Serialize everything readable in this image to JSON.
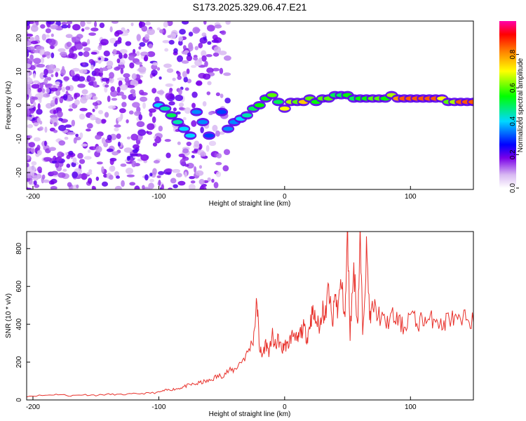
{
  "chart_data": [
    {
      "type": "heatmap",
      "title": "S173.2025.329.06.47.E21",
      "xlabel": "Height of straight line (km)",
      "ylabel": "Frequency (Hz)",
      "xlim": [
        -205,
        150
      ],
      "ylim": [
        -25,
        25
      ],
      "xticks": [
        -200,
        -100,
        0,
        100
      ],
      "yticks": [
        -20,
        -10,
        0,
        10,
        20
      ],
      "colorbar": {
        "label": "Normalized spectral amplitude",
        "ticks": [
          0.0,
          0.2,
          0.4,
          0.6,
          0.8
        ],
        "tick_labels": [
          "0.0",
          "0.2",
          "0.4",
          "0.6",
          "0.8"
        ],
        "range": [
          0,
          1
        ]
      },
      "ridge": [
        {
          "x": -100,
          "y": 0,
          "a": 0.4
        },
        {
          "x": -95,
          "y": -1,
          "a": 0.45
        },
        {
          "x": -90,
          "y": -3,
          "a": 0.5
        },
        {
          "x": -85,
          "y": -5,
          "a": 0.45
        },
        {
          "x": -80,
          "y": -7,
          "a": 0.4
        },
        {
          "x": -75,
          "y": -9,
          "a": 0.4
        },
        {
          "x": -70,
          "y": -2,
          "a": 0.35
        },
        {
          "x": -65,
          "y": -5,
          "a": 0.35
        },
        {
          "x": -60,
          "y": -9,
          "a": 0.3
        },
        {
          "x": -50,
          "y": -2,
          "a": 0.3
        },
        {
          "x": -45,
          "y": -7,
          "a": 0.35
        },
        {
          "x": -40,
          "y": -5,
          "a": 0.35
        },
        {
          "x": -35,
          "y": -4,
          "a": 0.4
        },
        {
          "x": -30,
          "y": -3,
          "a": 0.45
        },
        {
          "x": -25,
          "y": -1,
          "a": 0.5
        },
        {
          "x": -20,
          "y": 0,
          "a": 0.55
        },
        {
          "x": -15,
          "y": 2,
          "a": 0.55
        },
        {
          "x": -10,
          "y": 3,
          "a": 0.6
        },
        {
          "x": -5,
          "y": 1,
          "a": 0.5
        },
        {
          "x": 0,
          "y": -1,
          "a": 0.7
        },
        {
          "x": 5,
          "y": 1,
          "a": 0.65
        },
        {
          "x": 10,
          "y": 1,
          "a": 0.6
        },
        {
          "x": 15,
          "y": 1,
          "a": 0.75
        },
        {
          "x": 20,
          "y": 2,
          "a": 0.6
        },
        {
          "x": 25,
          "y": 1,
          "a": 0.55
        },
        {
          "x": 30,
          "y": 2,
          "a": 0.6
        },
        {
          "x": 35,
          "y": 2,
          "a": 0.6
        },
        {
          "x": 40,
          "y": 3,
          "a": 0.5
        },
        {
          "x": 45,
          "y": 3,
          "a": 0.5
        },
        {
          "x": 50,
          "y": 3,
          "a": 0.55
        },
        {
          "x": 55,
          "y": 2,
          "a": 0.5
        },
        {
          "x": 60,
          "y": 2,
          "a": 0.55
        },
        {
          "x": 65,
          "y": 2,
          "a": 0.55
        },
        {
          "x": 70,
          "y": 2,
          "a": 0.6
        },
        {
          "x": 75,
          "y": 2,
          "a": 0.6
        },
        {
          "x": 80,
          "y": 2,
          "a": 0.55
        },
        {
          "x": 85,
          "y": 3,
          "a": 0.65
        },
        {
          "x": 90,
          "y": 2,
          "a": 0.8
        },
        {
          "x": 95,
          "y": 2,
          "a": 0.85
        },
        {
          "x": 100,
          "y": 2,
          "a": 0.85
        },
        {
          "x": 105,
          "y": 2,
          "a": 0.85
        },
        {
          "x": 110,
          "y": 2,
          "a": 0.85
        },
        {
          "x": 115,
          "y": 2,
          "a": 0.85
        },
        {
          "x": 120,
          "y": 2,
          "a": 0.85
        },
        {
          "x": 125,
          "y": 2,
          "a": 0.7
        },
        {
          "x": 130,
          "y": 1,
          "a": 0.6
        },
        {
          "x": 135,
          "y": 1,
          "a": 0.65
        },
        {
          "x": 140,
          "y": 1,
          "a": 0.85
        },
        {
          "x": 145,
          "y": 1,
          "a": 0.85
        },
        {
          "x": 150,
          "y": 1,
          "a": 0.85
        }
      ]
    },
    {
      "type": "line",
      "xlabel": "Height of straight line (km)",
      "ylabel": "SNR (10 * v/v)",
      "xlim": [
        -205,
        150
      ],
      "ylim": [
        0,
        890
      ],
      "xticks": [
        -200,
        -100,
        0,
        100
      ],
      "yticks": [
        0,
        200,
        400,
        600,
        800
      ],
      "series": [
        {
          "name": "SNR",
          "color": "#e8302a",
          "x": [
            -205,
            -190,
            -180,
            -170,
            -160,
            -150,
            -140,
            -130,
            -120,
            -110,
            -100,
            -95,
            -90,
            -85,
            -80,
            -75,
            -70,
            -65,
            -60,
            -55,
            -50,
            -45,
            -40,
            -35,
            -30,
            -25,
            -22,
            -20,
            -18,
            -15,
            -12,
            -10,
            -8,
            -5,
            -2,
            0,
            2,
            5,
            8,
            10,
            12,
            15,
            18,
            20,
            22,
            25,
            28,
            30,
            32,
            35,
            38,
            40,
            42,
            45,
            48,
            50,
            52,
            55,
            58,
            60,
            62,
            65,
            68,
            70,
            75,
            80,
            85,
            90,
            95,
            100,
            105,
            110,
            115,
            120,
            125,
            130,
            135,
            140,
            145,
            150
          ],
          "y": [
            20,
            25,
            30,
            22,
            28,
            25,
            30,
            28,
            32,
            35,
            40,
            50,
            55,
            60,
            70,
            80,
            85,
            95,
            100,
            120,
            130,
            150,
            160,
            200,
            240,
            320,
            520,
            280,
            230,
            300,
            250,
            350,
            280,
            320,
            260,
            300,
            280,
            330,
            360,
            300,
            350,
            380,
            330,
            400,
            460,
            420,
            380,
            500,
            420,
            600,
            380,
            560,
            480,
            620,
            440,
            890,
            350,
            700,
            400,
            850,
            380,
            780,
            420,
            500,
            450,
            400,
            440,
            420,
            380,
            460,
            400,
            430,
            410,
            450,
            380,
            440,
            420,
            400,
            450,
            410
          ]
        }
      ]
    }
  ]
}
